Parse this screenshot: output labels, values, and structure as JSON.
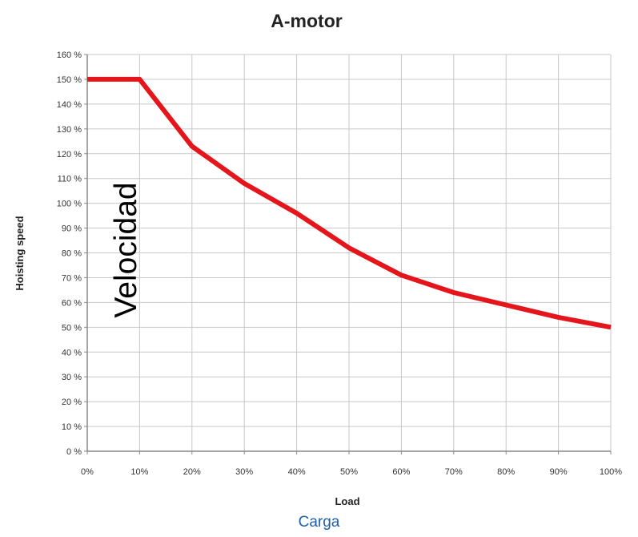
{
  "chart_data": {
    "type": "line",
    "title": "A-motor",
    "xlabel": "Load",
    "ylabel": "Hoisting speed",
    "annotation": "Velocidad",
    "x_ticks": [
      "0%",
      "10%",
      "20%",
      "30%",
      "40%",
      "50%",
      "60%",
      "70%",
      "80%",
      "90%",
      "100%"
    ],
    "y_ticks": [
      "0 %",
      "10 %",
      "20 %",
      "30 %",
      "40 %",
      "50 %",
      "60 %",
      "70 %",
      "80 %",
      "90 %",
      "100 %",
      "110 %",
      "120 %",
      "130 %",
      "140 %",
      "150 %",
      "160 %"
    ],
    "xlim": [
      0,
      100
    ],
    "ylim": [
      0,
      160
    ],
    "grid": true,
    "series": [
      {
        "x": [
          0,
          10,
          20,
          30,
          40,
          50,
          60,
          70,
          80,
          90,
          100
        ],
        "y": [
          150,
          150,
          123,
          108,
          96,
          82,
          71,
          64,
          59,
          54,
          50
        ],
        "color": "#e4161c"
      }
    ]
  },
  "caption": "Carga"
}
